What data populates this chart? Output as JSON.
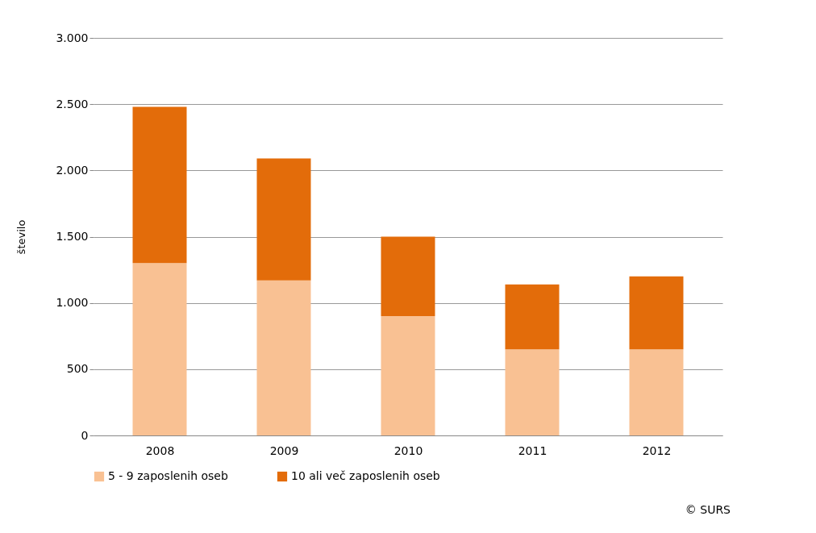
{
  "chart_data": {
    "type": "bar",
    "stacked": true,
    "ylabel": "število",
    "categories": [
      "2008",
      "2009",
      "2010",
      "2011",
      "2012"
    ],
    "series": [
      {
        "name": "5 - 9 zaposlenih oseb",
        "color": "#f9c193",
        "values": [
          1300,
          1170,
          900,
          650,
          650
        ]
      },
      {
        "name": "10 ali več zaposlenih oseb",
        "color": "#e36c0a",
        "values": [
          1180,
          920,
          600,
          490,
          550
        ]
      }
    ],
    "ylim": [
      0,
      3000
    ],
    "yticks": [
      {
        "value": 0,
        "label": "0"
      },
      {
        "value": 500,
        "label": "500"
      },
      {
        "value": 1000,
        "label": "1.000"
      },
      {
        "value": 1500,
        "label": "1.500"
      },
      {
        "value": 2000,
        "label": "2.000"
      },
      {
        "value": 2500,
        "label": "2.500"
      },
      {
        "value": 3000,
        "label": "3.000"
      }
    ],
    "grid": "y",
    "legend": "bottom",
    "annotations": [
      "© SURS"
    ]
  }
}
